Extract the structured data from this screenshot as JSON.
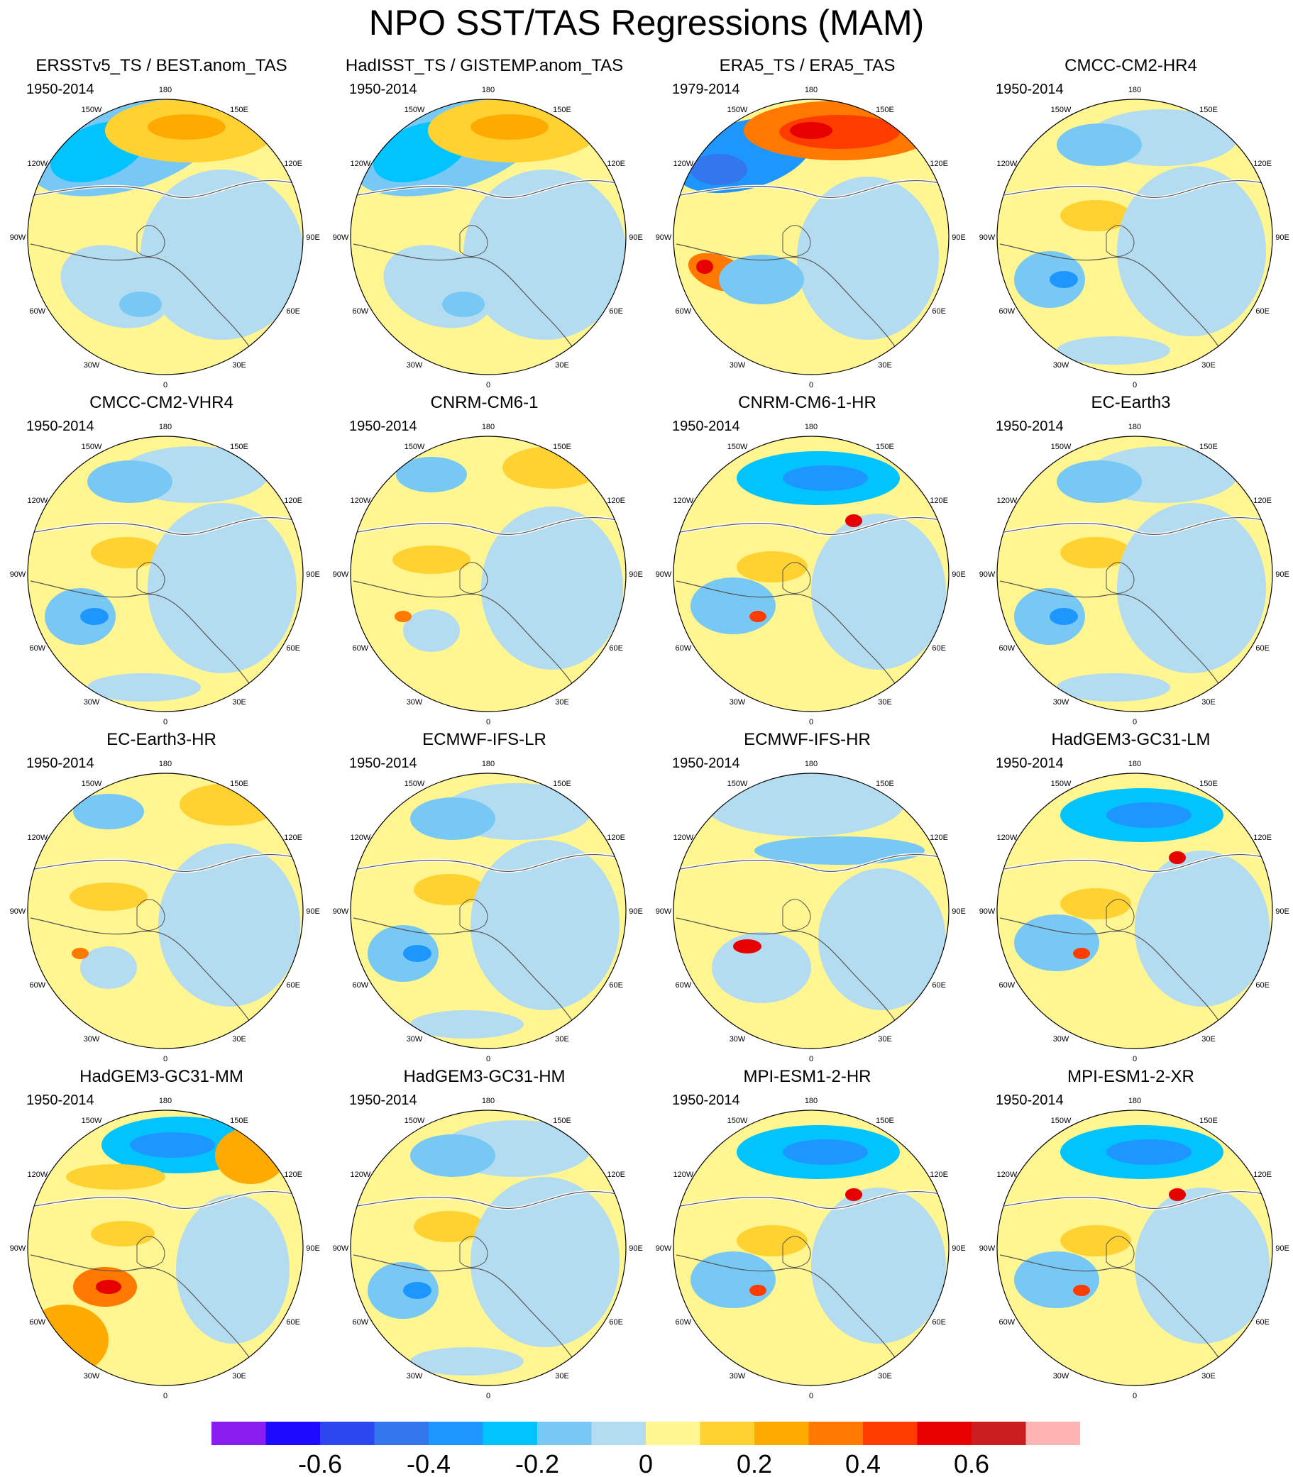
{
  "title": "NPO SST/TAS Regressions (MAM)",
  "lon_labels": [
    "180",
    "150E",
    "120E",
    "90E",
    "60E",
    "30E",
    "0",
    "30W",
    "60W",
    "90W",
    "120W",
    "150W"
  ],
  "panels": [
    {
      "name": "ERSSTv5_TS / BEST.anom_TAS",
      "period": "1950-2014",
      "pattern": "obs"
    },
    {
      "name": "HadISST_TS / GISTEMP.anom_TAS",
      "period": "1950-2014",
      "pattern": "obs"
    },
    {
      "name": "ERA5_TS / ERA5_TAS",
      "period": "1979-2014",
      "pattern": "era5"
    },
    {
      "name": "CMCC-CM2-HR4",
      "period": "1950-2014",
      "pattern": "model_a"
    },
    {
      "name": "CMCC-CM2-VHR4",
      "period": "1950-2014",
      "pattern": "model_a"
    },
    {
      "name": "CNRM-CM6-1",
      "period": "1950-2014",
      "pattern": "model_b"
    },
    {
      "name": "CNRM-CM6-1-HR",
      "period": "1950-2014",
      "pattern": "model_c"
    },
    {
      "name": "EC-Earth3",
      "period": "1950-2014",
      "pattern": "model_a"
    },
    {
      "name": "EC-Earth3-HR",
      "period": "1950-2014",
      "pattern": "model_b"
    },
    {
      "name": "ECMWF-IFS-LR",
      "period": "1950-2014",
      "pattern": "model_a"
    },
    {
      "name": "ECMWF-IFS-HR",
      "period": "1950-2014",
      "pattern": "model_d"
    },
    {
      "name": "HadGEM3-GC31-LM",
      "period": "1950-2014",
      "pattern": "model_c"
    },
    {
      "name": "HadGEM3-GC31-MM",
      "period": "1950-2014",
      "pattern": "model_e"
    },
    {
      "name": "HadGEM3-GC31-HM",
      "period": "1950-2014",
      "pattern": "model_a"
    },
    {
      "name": "MPI-ESM1-2-HR",
      "period": "1950-2014",
      "pattern": "model_c"
    },
    {
      "name": "MPI-ESM1-2-XR",
      "period": "1950-2014",
      "pattern": "model_c"
    }
  ],
  "colorbar": {
    "colors": [
      "#8a1ef0",
      "#1e0aff",
      "#2c47f0",
      "#3278ec",
      "#1e96ff",
      "#00c3ff",
      "#78c8f5",
      "#b4dcf0",
      "#fff591",
      "#ffd232",
      "#ffaa00",
      "#ff7800",
      "#ff3c00",
      "#e60000",
      "#c81e1e",
      "#ffb4b4"
    ],
    "labels": [
      "-0.6",
      "-0.4",
      "-0.2",
      "0",
      "0.2",
      "0.4",
      "0.6"
    ]
  },
  "palette": {
    "land_line": "#555555",
    "coast_white": "#ffffff",
    "frame": "#000000"
  }
}
